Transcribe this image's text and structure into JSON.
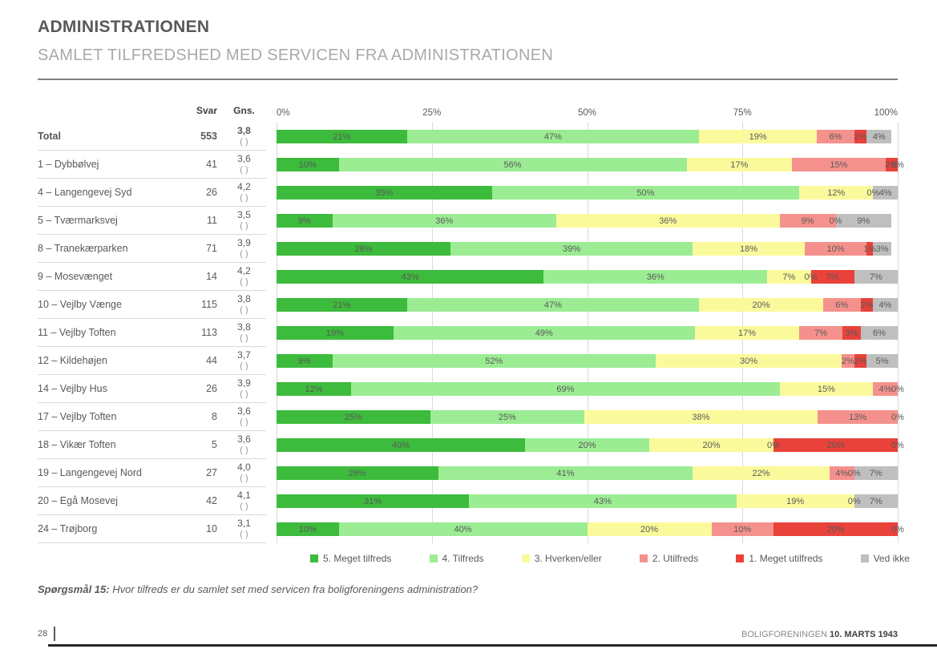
{
  "page": {
    "title": "ADMINISTRATIONEN",
    "subtitle": "SAMLET TILFREDSHED MED SERVICEN FRA ADMINISTRATIONEN",
    "footnote_label": "Spørgsmål 15:",
    "footnote_text": " Hvor tilfreds er du samlet set med servicen fra boligforeningens administration?",
    "page_number": "28",
    "footer_source_normal": "BOLIGFORENINGEN ",
    "footer_source_bold": "10. MARTS 1943"
  },
  "table": {
    "col_svar": "Svar",
    "col_gns": "Gns."
  },
  "chart_data": {
    "type": "bar",
    "stacked": true,
    "orientation": "horizontal",
    "xlim": [
      0,
      100
    ],
    "grid": true,
    "legend_position": "bottom",
    "axis_ticks": [
      "0%",
      "25%",
      "50%",
      "75%",
      "100%"
    ],
    "axis_tick_values": [
      0,
      25,
      50,
      75,
      100
    ],
    "series_names": [
      "5. Meget tilfreds",
      "4. Tilfreds",
      "3. Hverken/eller",
      "2. Utilfreds",
      "1. Meget utilfreds",
      "Ved ikke"
    ],
    "series_colors": [
      "#3cbb3c",
      "#9bec93",
      "#fafa9c",
      "#f5918c",
      "#e8423a",
      "#bfbfbf"
    ],
    "rows": [
      {
        "name": "Total",
        "svar": "553",
        "gns": "3,8",
        "gns_note": "( )",
        "bold": true,
        "values": [
          21,
          47,
          19,
          6,
          2,
          4
        ],
        "labels": [
          "21%",
          "47%",
          "19%",
          "6%",
          "2%",
          "4%"
        ]
      },
      {
        "name": "1 – Dybbølvej",
        "svar": "41",
        "gns": "3,6",
        "gns_note": "( )",
        "bold": false,
        "values": [
          10,
          56,
          17,
          15,
          2,
          0
        ],
        "labels": [
          "10%",
          "56%",
          "17%",
          "15%",
          "2%",
          "0%"
        ]
      },
      {
        "name": "4 – Langengevej Syd",
        "svar": "26",
        "gns": "4,2",
        "gns_note": "( )",
        "bold": false,
        "values": [
          35,
          50,
          12,
          0,
          0,
          4
        ],
        "labels": [
          "35%",
          "50%",
          "12%",
          "0%",
          "",
          "4%"
        ]
      },
      {
        "name": "5 – Tværmarksvej",
        "svar": "11",
        "gns": "3,5",
        "gns_note": "( )",
        "bold": false,
        "values": [
          9,
          36,
          36,
          9,
          0,
          9
        ],
        "labels": [
          "9%",
          "36%",
          "36%",
          "9%",
          "0%",
          "9%"
        ]
      },
      {
        "name": "8 – Tranekærparken",
        "svar": "71",
        "gns": "3,9",
        "gns_note": "( )",
        "bold": false,
        "values": [
          28,
          39,
          18,
          10,
          1,
          3
        ],
        "labels": [
          "28%",
          "39%",
          "18%",
          "10%",
          "1%",
          "3%"
        ]
      },
      {
        "name": "9 – Mosevænget",
        "svar": "14",
        "gns": "4,2",
        "gns_note": "( )",
        "bold": false,
        "values": [
          43,
          36,
          7,
          0,
          7,
          7
        ],
        "labels": [
          "43%",
          "36%",
          "7%",
          "0%",
          "7%",
          "7%"
        ]
      },
      {
        "name": "10 – Vejlby Vænge",
        "svar": "115",
        "gns": "3,8",
        "gns_note": "( )",
        "bold": false,
        "values": [
          21,
          47,
          20,
          6,
          2,
          4
        ],
        "labels": [
          "21%",
          "47%",
          "20%",
          "6%",
          "2%",
          "4%"
        ]
      },
      {
        "name": "11 – Vejlby Toften",
        "svar": "113",
        "gns": "3,8",
        "gns_note": "( )",
        "bold": false,
        "values": [
          19,
          49,
          17,
          7,
          3,
          6
        ],
        "labels": [
          "19%",
          "49%",
          "17%",
          "7%",
          "3%",
          "6%"
        ]
      },
      {
        "name": "12 – Kildehøjen",
        "svar": "44",
        "gns": "3,7",
        "gns_note": "( )",
        "bold": false,
        "values": [
          9,
          52,
          30,
          2,
          2,
          5
        ],
        "labels": [
          "9%",
          "52%",
          "30%",
          "2%",
          "2%",
          "5%"
        ]
      },
      {
        "name": "14 – Vejlby Hus",
        "svar": "26",
        "gns": "3,9",
        "gns_note": "( )",
        "bold": false,
        "values": [
          12,
          69,
          15,
          4,
          0,
          0
        ],
        "labels": [
          "12%",
          "69%",
          "15%",
          "4%",
          "0%",
          ""
        ]
      },
      {
        "name": "17 – Vejlby Toften",
        "svar": "8",
        "gns": "3,6",
        "gns_note": "( )",
        "bold": false,
        "values": [
          25,
          25,
          38,
          13,
          0,
          0
        ],
        "labels": [
          "25%",
          "25%",
          "38%",
          "13%",
          "0%",
          ""
        ]
      },
      {
        "name": "18 – Vikær Toften",
        "svar": "5",
        "gns": "3,6",
        "gns_note": "( )",
        "bold": false,
        "values": [
          40,
          20,
          20,
          0,
          20,
          0
        ],
        "labels": [
          "40%",
          "20%",
          "20%",
          "0%",
          "20%",
          "0%"
        ]
      },
      {
        "name": "19 – Langengevej Nord",
        "svar": "27",
        "gns": "4,0",
        "gns_note": "( )",
        "bold": false,
        "values": [
          26,
          41,
          22,
          4,
          0,
          7
        ],
        "labels": [
          "26%",
          "41%",
          "22%",
          "4%",
          "0%",
          "7%"
        ]
      },
      {
        "name": "20 – Egå Mosevej",
        "svar": "42",
        "gns": "4,1",
        "gns_note": "( )",
        "bold": false,
        "values": [
          31,
          43,
          19,
          0,
          0,
          7
        ],
        "labels": [
          "31%",
          "43%",
          "19%",
          "0%",
          "",
          "7%"
        ]
      },
      {
        "name": "24 – Trøjborg",
        "svar": "10",
        "gns": "3,1",
        "gns_note": "( )",
        "bold": false,
        "values": [
          10,
          40,
          20,
          10,
          20,
          0
        ],
        "labels": [
          "10%",
          "40%",
          "20%",
          "10%",
          "20%",
          "0%"
        ]
      }
    ]
  }
}
